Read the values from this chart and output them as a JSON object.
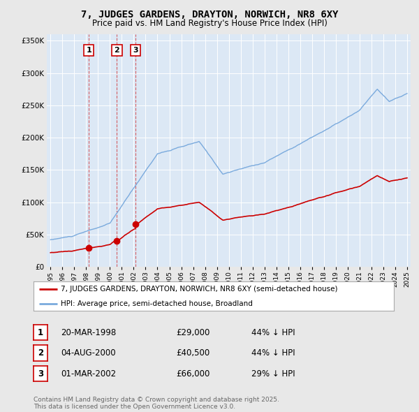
{
  "title": "7, JUDGES GARDENS, DRAYTON, NORWICH, NR8 6XY",
  "subtitle": "Price paid vs. HM Land Registry's House Price Index (HPI)",
  "legend_line1": "7, JUDGES GARDENS, DRAYTON, NORWICH, NR8 6XY (semi-detached house)",
  "legend_line2": "HPI: Average price, semi-detached house, Broadland",
  "footer": "Contains HM Land Registry data © Crown copyright and database right 2025.\nThis data is licensed under the Open Government Licence v3.0.",
  "purchases": [
    {
      "num": 1,
      "date": "20-MAR-1998",
      "price": 29000,
      "year": 1998.22,
      "label_pct": "44% ↓ HPI"
    },
    {
      "num": 2,
      "date": "04-AUG-2000",
      "price": 40500,
      "year": 2000.59,
      "label_pct": "44% ↓ HPI"
    },
    {
      "num": 3,
      "date": "01-MAR-2002",
      "price": 66000,
      "year": 2002.17,
      "label_pct": "29% ↓ HPI"
    }
  ],
  "red_color": "#cc0000",
  "blue_color": "#7aaadd",
  "plot_bg": "#dce8f5",
  "bg_color": "#e8e8e8",
  "ylim": [
    0,
    360000
  ],
  "xlim": [
    1994.7,
    2025.3
  ],
  "yticks": [
    0,
    50000,
    100000,
    150000,
    200000,
    250000,
    300000,
    350000
  ]
}
